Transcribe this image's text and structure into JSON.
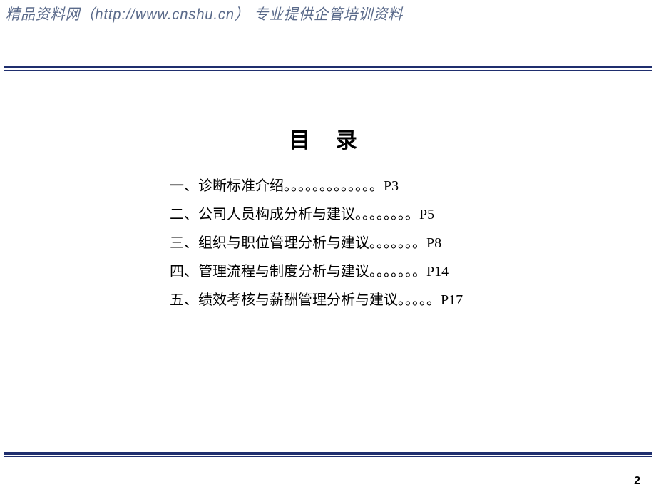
{
  "header": {
    "watermark": "精品资料网（http://www.cnshu.cn） 专业提供企管培训资料"
  },
  "title": "目  录",
  "toc": {
    "items": [
      {
        "label": "一、诊断标准介绍",
        "dots": "。。。。。。。。。。。。。",
        "page": "P3"
      },
      {
        "label": "二、公司人员构成分析与建议",
        "dots": "。。。。。。。。",
        "page": "P5"
      },
      {
        "label": "三、组织与职位管理分析与建议",
        "dots": "。。。。。。。",
        "page": "P8"
      },
      {
        "label": "四、管理流程与制度分析与建议",
        "dots": "。。。。。。。",
        "page": "P14"
      },
      {
        "label": "五、绩效考核与薪酬管理分析与建议",
        "dots": "。。。。。",
        "page": "P17"
      }
    ]
  },
  "pageNumber": "2",
  "colors": {
    "ruleColor": "#1f2e6e",
    "watermarkColor": "#5a6a8a",
    "textColor": "#000000",
    "background": "#ffffff"
  }
}
